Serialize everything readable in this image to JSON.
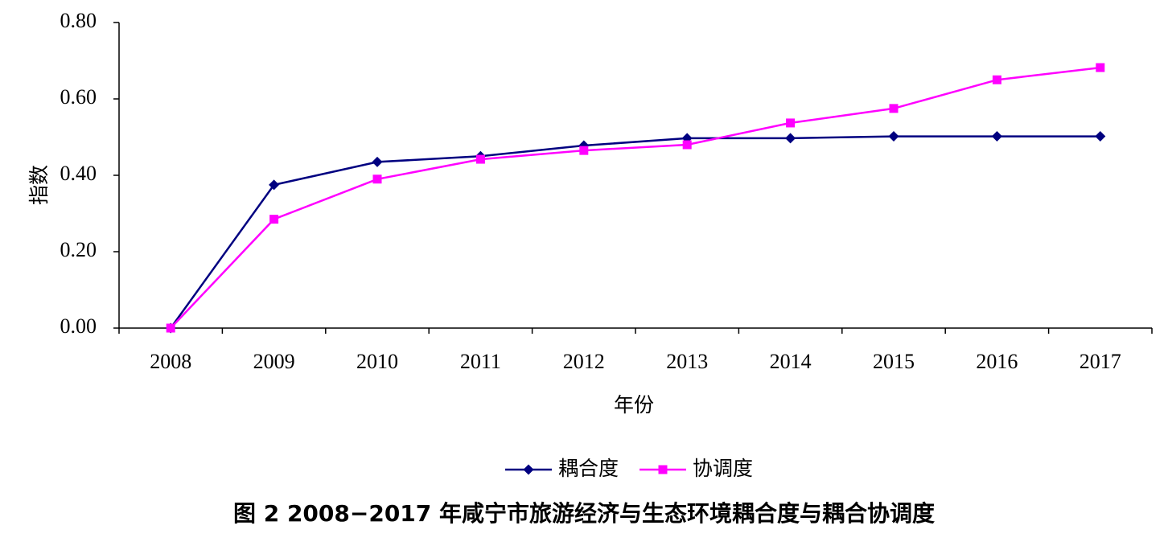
{
  "chart_data": {
    "type": "line",
    "title": "",
    "xlabel": "年份",
    "ylabel": "指数",
    "categories": [
      "2008",
      "2009",
      "2010",
      "2011",
      "2012",
      "2013",
      "2014",
      "2015",
      "2016",
      "2017"
    ],
    "y_ticks": [
      "0.00",
      "0.20",
      "0.40",
      "0.60",
      "0.80"
    ],
    "ylim": [
      0,
      0.8
    ],
    "grid": false,
    "legend_position": "bottom",
    "series": [
      {
        "name": "耦合度",
        "color": "#000080",
        "marker": "diamond",
        "values": [
          0.0,
          0.375,
          0.435,
          0.45,
          0.478,
          0.497,
          0.497,
          0.502,
          0.502,
          0.502
        ]
      },
      {
        "name": "协调度",
        "color": "#ff00ff",
        "marker": "square",
        "values": [
          0.0,
          0.285,
          0.39,
          0.442,
          0.465,
          0.48,
          0.537,
          0.575,
          0.65,
          0.682
        ]
      }
    ]
  },
  "caption": "图 2   2008−2017 年咸宁市旅游经济与生态环境耦合度与耦合协调度"
}
